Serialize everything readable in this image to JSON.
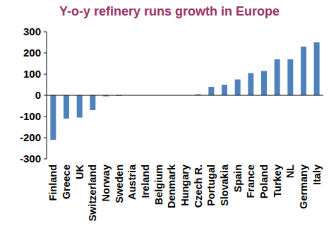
{
  "chart_data": {
    "type": "bar",
    "title": "Y-o-y refinery runs growth in Europe",
    "categories": [
      "Finland",
      "Greece",
      "UK",
      "Switzerland",
      "Norway",
      "Sweden",
      "Austria",
      "Ireland",
      "Belgium",
      "Denmark",
      "Hungary",
      "Czech R.",
      "Portugal",
      "Slovakia",
      "Spain",
      "France",
      "Poland",
      "Turkey",
      "NL",
      "Germany",
      "Italy"
    ],
    "values": [
      -210,
      -110,
      -105,
      -70,
      -5,
      -3,
      0,
      0,
      0,
      0,
      0,
      5,
      40,
      50,
      75,
      105,
      115,
      170,
      170,
      230,
      250
    ],
    "color": "#4f81bd",
    "ylim": [
      -300,
      300
    ],
    "yticks": [
      -300,
      -200,
      -100,
      0,
      100,
      200,
      300
    ],
    "grid": false
  }
}
